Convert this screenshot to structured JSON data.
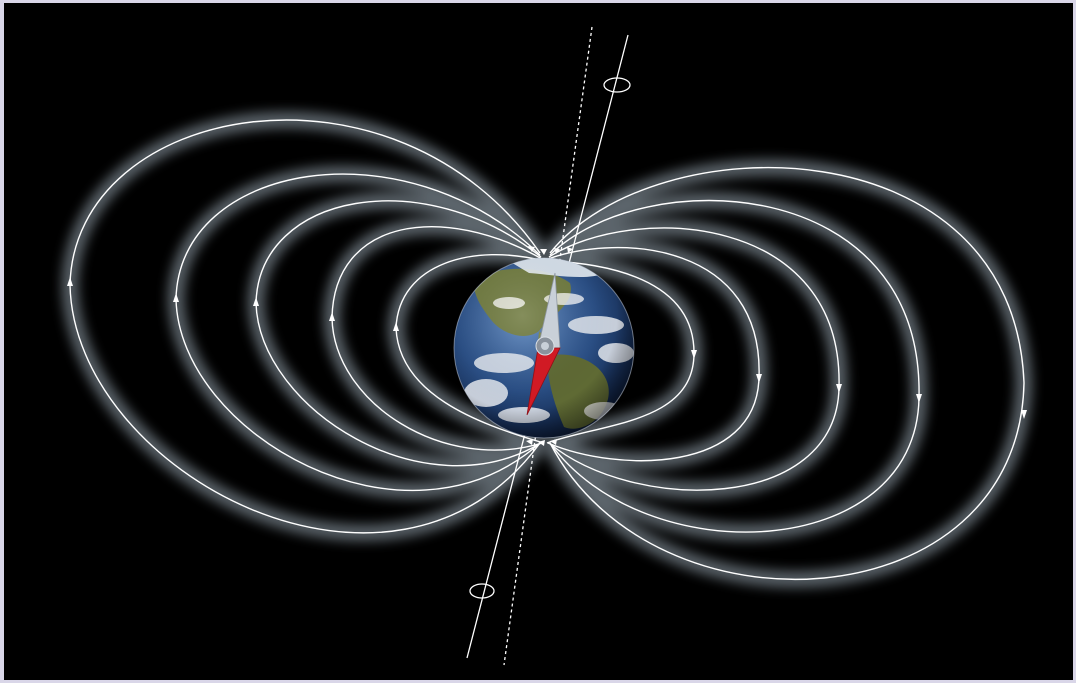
{
  "diagram": {
    "subject": "earth-magnetic-field",
    "colors": {
      "background": "#000000",
      "page_border": "#d9d6e8",
      "field_line": "#ffffff",
      "field_glow": "#a8b8c4",
      "needle_north": "#c9d0d8",
      "needle_south": "#d11a24",
      "ocean": "#2a4f86",
      "land": "#6f7a3f"
    },
    "field_line_count_per_side": 5,
    "axes": [
      "rotation-axis",
      "magnetic-axis"
    ]
  }
}
